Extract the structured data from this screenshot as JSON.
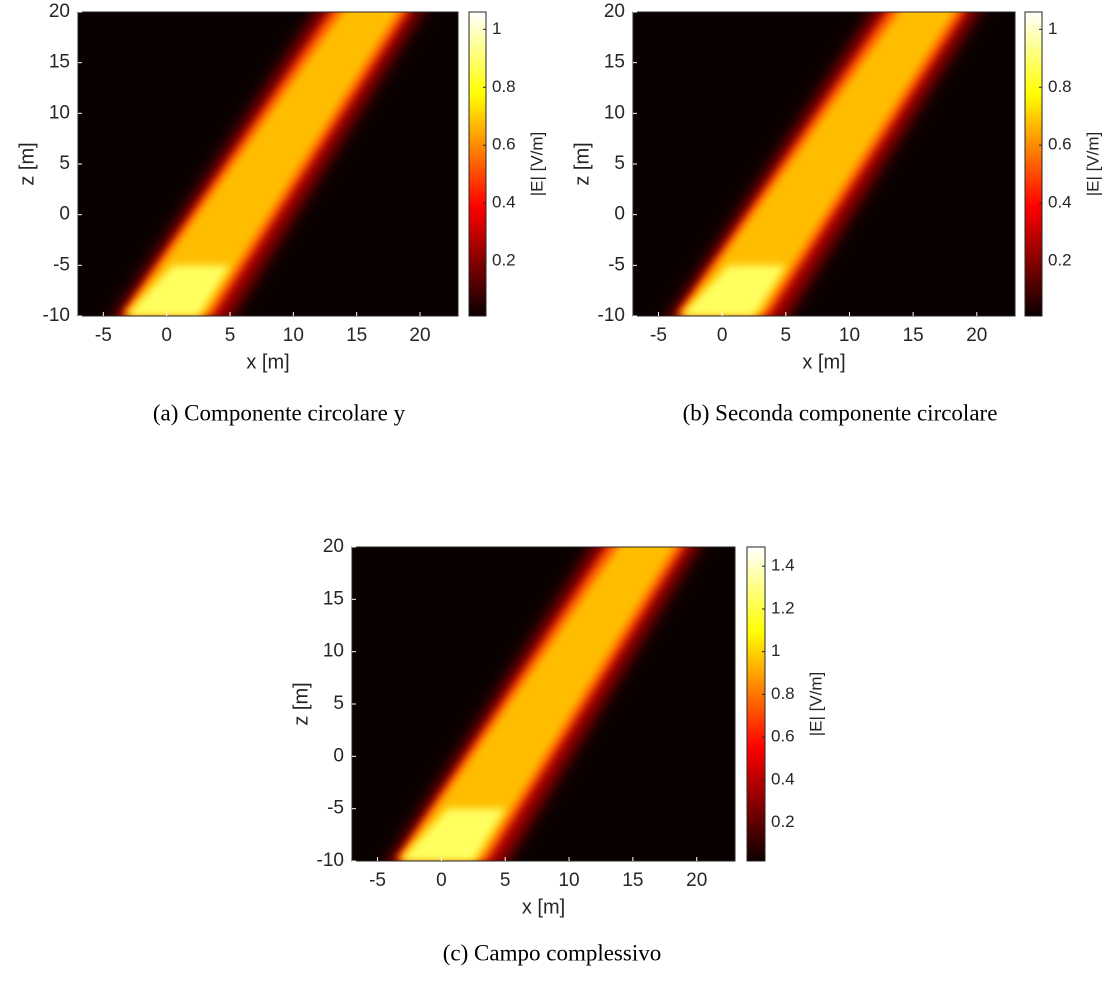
{
  "chart_data": [
    {
      "type": "heatmap",
      "caption": "(a) Componente circolare y",
      "xlabel": "x [m]",
      "ylabel": "z [m]",
      "xlim": [
        -7,
        23
      ],
      "ylim": [
        -10,
        20
      ],
      "xticks": [
        -5,
        0,
        5,
        10,
        15,
        20
      ],
      "yticks": [
        -10,
        -5,
        0,
        5,
        10,
        15,
        20
      ],
      "colorbar_label": "|E| [V/m]",
      "clim": [
        0.01,
        1.06
      ],
      "cticks": [
        0.2,
        0.4,
        0.6,
        0.8,
        1
      ],
      "colormap": "hot"
    },
    {
      "type": "heatmap",
      "caption": "(b) Seconda componente circolare",
      "xlabel": "x [m]",
      "ylabel": "z [m]",
      "xlim": [
        -7,
        23
      ],
      "ylim": [
        -10,
        20
      ],
      "xticks": [
        -5,
        0,
        5,
        10,
        15,
        20
      ],
      "yticks": [
        -10,
        -5,
        0,
        5,
        10,
        15,
        20
      ],
      "colorbar_label": "|E| [V/m]",
      "clim": [
        0.01,
        1.06
      ],
      "cticks": [
        0.2,
        0.4,
        0.6,
        0.8,
        1
      ],
      "colormap": "hot"
    },
    {
      "type": "heatmap",
      "caption": "(c) Campo complessivo",
      "xlabel": "x [m]",
      "ylabel": "z [m]",
      "xlim": [
        -7,
        23
      ],
      "ylim": [
        -10,
        20
      ],
      "xticks": [
        -5,
        0,
        5,
        10,
        15,
        20
      ],
      "yticks": [
        -10,
        -5,
        0,
        5,
        10,
        15,
        20
      ],
      "colorbar_label": "|E| [V/m]",
      "clim": [
        0.02,
        1.49
      ],
      "cticks": [
        0.2,
        0.4,
        0.6,
        0.8,
        1,
        1.2,
        1.4
      ],
      "colormap": "hot"
    }
  ]
}
